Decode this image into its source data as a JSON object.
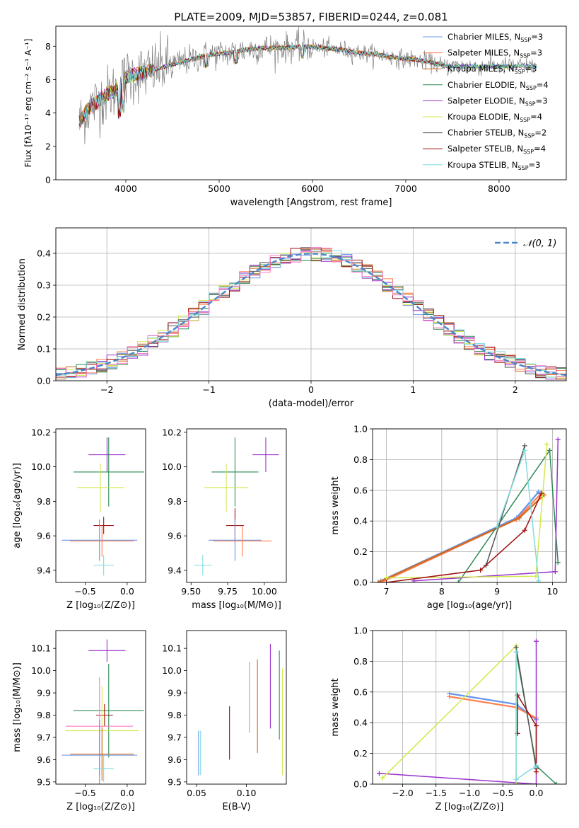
{
  "figure": {
    "title": "PLATE=2009, MJD=53857, FIBERID=0244, z=0.081"
  },
  "chart_data": [
    {
      "id": "spectrum",
      "type": "line",
      "xlabel": "wavelength [Angstrom, rest frame]",
      "ylabel": "Flux [fλ10⁻¹⁷ erg cm⁻² s⁻¹ A⁻¹]",
      "xlim": [
        3250,
        8720
      ],
      "ylim": [
        0,
        9.2
      ],
      "xticks": [
        4000,
        5000,
        6000,
        7000,
        8000
      ],
      "yticks": [
        0,
        2,
        4,
        6,
        8
      ],
      "legend_position": "top-right",
      "continuum": {
        "x": [
          3500,
          3600,
          3700,
          3800,
          3900,
          4000,
          4100,
          4200,
          4300,
          4500,
          4700,
          4900,
          5100,
          5300,
          5500,
          5700,
          5900,
          6100,
          6300,
          6500,
          6700,
          6900,
          7100,
          7300,
          7400
        ],
        "y": [
          3.4,
          4.3,
          4.7,
          5.1,
          5.4,
          6.1,
          6.3,
          6.4,
          6.6,
          6.9,
          7.2,
          7.5,
          7.6,
          7.8,
          7.9,
          7.9,
          8.0,
          7.9,
          7.8,
          7.6,
          7.5,
          7.3,
          7.2,
          7.0,
          6.8
        ]
      },
      "series": [
        {
          "name": "Chabrier MILES, N",
          "sub": "SSP",
          "value": "=3",
          "color": "#6495ed"
        },
        {
          "name": "Salpeter MILES, N",
          "sub": "SSP",
          "value": "=3",
          "color": "#ff7f50"
        },
        {
          "name": "Kroupa MILES, N",
          "sub": "SSP",
          "value": "=3",
          "color": "#d2691e"
        },
        {
          "name": "Chabrier ELODIE, N",
          "sub": "SSP",
          "value": "=4",
          "color": "#2e8b57"
        },
        {
          "name": "Salpeter ELODIE, N",
          "sub": "SSP",
          "value": "=3",
          "color": "#9932cc"
        },
        {
          "name": "Kroupa ELODIE, N",
          "sub": "SSP",
          "value": "=4",
          "color": "#d4e84a"
        },
        {
          "name": "Chabrier STELIB, N",
          "sub": "SSP",
          "value": "=2",
          "color": "#555555"
        },
        {
          "name": "Salpeter STELIB, N",
          "sub": "SSP",
          "value": "=4",
          "color": "#a01010"
        },
        {
          "name": "Kroupa STELIB, N",
          "sub": "SSP",
          "value": "=3",
          "color": "#7fdbe0"
        }
      ]
    },
    {
      "id": "residuals",
      "type": "histogram",
      "xlabel": "(data-model)/error",
      "ylabel": "Normed distribution",
      "xlim": [
        -2.5,
        2.5
      ],
      "ylim": [
        0,
        0.48
      ],
      "xticks": [
        -2,
        -1,
        0,
        1,
        2
      ],
      "yticks": [
        0.0,
        0.1,
        0.2,
        0.3,
        0.4
      ],
      "grid": true,
      "legend": "𝒩(0, 1)",
      "legend_position": "top-right",
      "bin_width": 0.1
    },
    {
      "id": "age-vs-Z",
      "type": "errorbar",
      "xlabel": "Z [log₁₀(Z/Z⊙)]",
      "ylabel": "age  [log₁₀(age/yr)]",
      "xlim": [
        -0.85,
        0.22
      ],
      "ylim": [
        9.33,
        10.22
      ],
      "xticks": [
        -0.5,
        0.0
      ],
      "yticks": [
        9.4,
        9.6,
        9.8,
        10.0,
        10.2
      ],
      "points": [
        {
          "x": -0.24,
          "xerr": 0.22,
          "y": 10.07,
          "yerr": 0.1,
          "color": "#9932cc"
        },
        {
          "x": -0.22,
          "xerr": 0.42,
          "y": 9.97,
          "yerr": 0.2,
          "color": "#2e8b57"
        },
        {
          "x": -0.32,
          "xerr": 0.28,
          "y": 9.88,
          "yerr": 0.14,
          "color": "#d4e84a"
        },
        {
          "x": -0.28,
          "xerr": 0.12,
          "y": 9.66,
          "yerr": 0.05,
          "color": "#a01010"
        },
        {
          "x": -0.33,
          "xerr": 0.45,
          "y": 9.575,
          "yerr": 0.12,
          "color": "#6495ed"
        },
        {
          "x": -0.3,
          "xerr": 0.38,
          "y": 9.57,
          "yerr": 0.09,
          "color": "#ff7f50"
        },
        {
          "x": -0.28,
          "xerr": 0.12,
          "y": 9.43,
          "yerr": 0.06,
          "color": "#7fdbe0"
        }
      ]
    },
    {
      "id": "age-vs-mass",
      "type": "errorbar",
      "xlabel": "mass [log₁₀(M/M⊙)]",
      "ylabel": "",
      "xlim": [
        9.47,
        10.15
      ],
      "ylim": [
        9.33,
        10.22
      ],
      "xticks": [
        9.5,
        9.75,
        10.0
      ],
      "yticks": [
        9.4,
        9.6,
        9.8,
        10.0,
        10.2
      ],
      "points": [
        {
          "x": 10.01,
          "xerr": 0.09,
          "y": 10.07,
          "yerr": 0.1,
          "color": "#9932cc"
        },
        {
          "x": 9.8,
          "xerr": 0.16,
          "y": 9.97,
          "yerr": 0.2,
          "color": "#2e8b57"
        },
        {
          "x": 9.74,
          "xerr": 0.15,
          "y": 9.88,
          "yerr": 0.14,
          "color": "#d4e84a"
        },
        {
          "x": 9.8,
          "xerr": 0.06,
          "y": 9.66,
          "yerr": 0.1,
          "color": "#a01010"
        },
        {
          "x": 9.8,
          "xerr": 0.18,
          "y": 9.575,
          "yerr": 0.12,
          "color": "#6495ed"
        },
        {
          "x": 9.85,
          "xerr": 0.2,
          "y": 9.57,
          "yerr": 0.09,
          "color": "#ff7f50"
        },
        {
          "x": 9.58,
          "xerr": 0.06,
          "y": 9.43,
          "yerr": 0.06,
          "color": "#7fdbe0"
        }
      ]
    },
    {
      "id": "weight-vs-age",
      "type": "line",
      "xlabel": "age  [log₁₀(age/yr)]",
      "ylabel": "mass weight",
      "xlim": [
        6.75,
        10.25
      ],
      "ylim": [
        0,
        1.0
      ],
      "xticks": [
        7,
        8,
        9,
        10
      ],
      "yticks": [
        0.0,
        0.2,
        0.4,
        0.6,
        0.8,
        1.0
      ],
      "grid": true,
      "series": [
        {
          "color": "#6495ed",
          "x": [
            6.9,
            9.35,
            9.75
          ],
          "y": [
            0.01,
            0.42,
            0.59
          ]
        },
        {
          "color": "#ff7f50",
          "x": [
            6.9,
            9.35,
            9.8
          ],
          "y": [
            0.0,
            0.41,
            0.58
          ]
        },
        {
          "color": "#d2691e",
          "x": [
            6.85,
            9.4,
            9.85
          ],
          "y": [
            0.0,
            0.42,
            0.57
          ]
        },
        {
          "color": "#2e8b57",
          "x": [
            8.3,
            9.95,
            10.1
          ],
          "y": [
            0.0,
            0.86,
            0.13
          ]
        },
        {
          "color": "#9932cc",
          "x": [
            7.5,
            10.05,
            10.1
          ],
          "y": [
            0.01,
            0.07,
            0.93
          ]
        },
        {
          "color": "#d4e84a",
          "x": [
            7.0,
            9.7,
            9.9
          ],
          "y": [
            0.03,
            0.04,
            0.9
          ]
        },
        {
          "color": "#555555",
          "x": [
            8.8,
            9.5
          ],
          "y": [
            0.11,
            0.89
          ]
        },
        {
          "color": "#a01010",
          "x": [
            7.0,
            8.7,
            9.5,
            9.8
          ],
          "y": [
            0.0,
            0.08,
            0.34,
            0.58
          ]
        },
        {
          "color": "#7fdbe0",
          "x": [
            9.0,
            9.5,
            9.75
          ],
          "y": [
            0.36,
            0.86,
            0.01
          ]
        }
      ]
    },
    {
      "id": "mass-vs-Z",
      "type": "errorbar",
      "xlabel": "Z [log₁₀(Z/Z⊙)]",
      "ylabel": "mass [log₁₀(M/M⊙)]",
      "xlim": [
        -0.85,
        0.22
      ],
      "ylim": [
        9.49,
        10.18
      ],
      "xticks": [
        -0.5,
        0.0
      ],
      "yticks": [
        9.5,
        9.6,
        9.7,
        9.8,
        9.9,
        10.0,
        10.1
      ],
      "points": [
        {
          "x": -0.24,
          "xerr": 0.22,
          "y": 10.09,
          "yerr": 0.05,
          "color": "#9932cc"
        },
        {
          "x": -0.22,
          "xerr": 0.42,
          "y": 9.82,
          "yerr": 0.21,
          "color": "#2e8b57"
        },
        {
          "x": -0.27,
          "xerr": 0.1,
          "y": 9.8,
          "yerr": 0.05,
          "color": "#a01010"
        },
        {
          "x": -0.3,
          "xerr": 0.44,
          "y": 9.73,
          "yerr": 0.2,
          "color": "#d4e84a"
        },
        {
          "x": -0.33,
          "xerr": 0.4,
          "y": 9.75,
          "yerr": 0.22,
          "color": "#ff79c6"
        },
        {
          "x": -0.33,
          "xerr": 0.45,
          "y": 9.62,
          "yerr": 0.16,
          "color": "#6495ed"
        },
        {
          "x": -0.3,
          "xerr": 0.38,
          "y": 9.625,
          "yerr": 0.12,
          "color": "#d2691e"
        },
        {
          "x": -0.28,
          "xerr": 0.12,
          "y": 9.56,
          "yerr": 0.06,
          "color": "#7fdbe0"
        }
      ]
    },
    {
      "id": "mass-vs-ebv",
      "type": "errorbar",
      "xlabel": "E(B-V)",
      "ylabel": "",
      "xlim": [
        0.04,
        0.14
      ],
      "ylim": [
        9.49,
        10.18
      ],
      "xticks": [
        0.05,
        0.1
      ],
      "yticks": [
        9.5,
        9.6,
        9.7,
        9.8,
        9.9,
        10.0,
        10.1
      ],
      "points": [
        {
          "x": 0.052,
          "y": 9.63,
          "yerr": 0.1,
          "color": "#6495ed"
        },
        {
          "x": 0.054,
          "y": 9.63,
          "yerr": 0.1,
          "color": "#7fdbe0"
        },
        {
          "x": 0.083,
          "y": 9.72,
          "yerr": 0.12,
          "color": "#a01010"
        },
        {
          "x": 0.103,
          "y": 9.88,
          "yerr": 0.16,
          "color": "#ff79c6"
        },
        {
          "x": 0.111,
          "y": 9.84,
          "yerr": 0.21,
          "color": "#d2691e"
        },
        {
          "x": 0.124,
          "y": 9.93,
          "yerr": 0.19,
          "color": "#9932cc"
        },
        {
          "x": 0.133,
          "y": 9.89,
          "yerr": 0.2,
          "color": "#2e8b57"
        },
        {
          "x": 0.136,
          "y": 9.77,
          "yerr": 0.24,
          "color": "#d4e84a"
        }
      ]
    },
    {
      "id": "weight-vs-Z",
      "type": "line",
      "xlabel": "Z [log₁₀(Z/Z⊙)]",
      "ylabel": "mass weight",
      "xlim": [
        -2.45,
        0.45
      ],
      "ylim": [
        0,
        1.0
      ],
      "xticks": [
        -2.0,
        -1.5,
        -1.0,
        -0.5,
        0.0
      ],
      "yticks": [
        0.0,
        0.2,
        0.4,
        0.6,
        0.8,
        1.0
      ],
      "grid": true,
      "series": [
        {
          "color": "#6495ed",
          "x": [
            -1.3,
            -0.3,
            0.0
          ],
          "y": [
            0.59,
            0.52,
            0.42
          ]
        },
        {
          "color": "#ff7f50",
          "x": [
            -1.3,
            -0.3,
            0.0
          ],
          "y": [
            0.57,
            0.5,
            0.43
          ]
        },
        {
          "color": "#2e8b57",
          "x": [
            -0.3,
            0.0,
            0.3
          ],
          "y": [
            0.86,
            0.12,
            0.0
          ]
        },
        {
          "color": "#9932cc",
          "x": [
            -2.35,
            0.0,
            0.0
          ],
          "y": [
            0.07,
            0.0,
            0.93
          ]
        },
        {
          "color": "#d4e84a",
          "x": [
            -2.3,
            -0.3,
            -0.3
          ],
          "y": [
            0.04,
            0.9,
            0.0
          ]
        },
        {
          "color": "#555555",
          "x": [
            -0.3,
            0.0
          ],
          "y": [
            0.89,
            0.1
          ]
        },
        {
          "color": "#a01010",
          "x": [
            -0.28,
            -0.28,
            0.0,
            0.0
          ],
          "y": [
            0.33,
            0.58,
            0.38,
            0.08
          ]
        },
        {
          "color": "#7fdbe0",
          "x": [
            -0.3,
            -0.3,
            0.0
          ],
          "y": [
            0.86,
            0.03,
            0.12
          ]
        }
      ]
    }
  ]
}
